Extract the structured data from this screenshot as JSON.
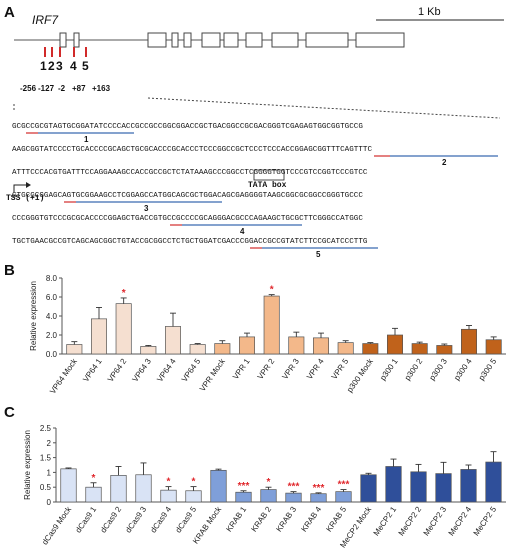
{
  "panels": {
    "a": "A",
    "b": "B",
    "c": "C"
  },
  "panel_a": {
    "gene": "IRF7",
    "scale_bar": "1 Kb",
    "sites": [
      "1",
      "2",
      "3",
      "4",
      "5"
    ],
    "positions": [
      "-256",
      "-127",
      "-2",
      "+87",
      "+163"
    ],
    "sequence": [
      "GCGCCGCGTAGTGCGGATATCCCCACCGCCGCCGGCGGACCGCTGACGGCCGCGACGGGTCGAGAGTGGCGGTGCCG",
      "AAGCGGTATCCCCTGCACCCCGCAGCTGCGCACCCGCACCCTCCCGGCCGCTCCCTCCCACCGGAGCGGTTTCAGTTTC",
      "ATTTCCCACGTGATTTCCAGGAAAGCCACCGCCGCTCTATAAAGCCCGGCCTCGGGGTGGTCCCGTCCGGTCCCGTCC",
      "GTGCGCGGAGCAGTGCGGAAGCCTCGGAGCCATGGCAGCGCTGGACAGCGAGGGGTAAGCGGCGCGGCCGGGTGCCC",
      "CCCGGGTGTCCCGCGCACCCCGGAGCTGACCGTGCCGCCCCGCAGGGACGCCCAGAAGCTGCGCTTCGGGCCATGGC",
      "TGCTGAACGCCGTCAGCAGCGGCTGTACCGCGGCCTCTGCTGGATCGACCCGGACCGCCGTATCTTCCGCATCCCTTG"
    ],
    "seq_labels": [
      "1",
      "2",
      "3",
      "4",
      "5"
    ],
    "tata_box": "TATA box",
    "tss": "TSS (+1)"
  },
  "chart_data": [
    {
      "type": "bar",
      "panel": "B",
      "ylabel": "Relative expression",
      "ylim": [
        0,
        8
      ],
      "yticks": [
        "0.0",
        "2.0",
        "4.0",
        "6.0",
        "8.0"
      ],
      "categories": [
        "VP64 Mock",
        "VP64 1",
        "VP64 2",
        "VP64 3",
        "VP64 4",
        "VP64 5",
        "VPR Mock",
        "VPR 1",
        "VPR 2",
        "VPR 3",
        "VPR 4",
        "VPR 5",
        "p300 Mock",
        "p300 1",
        "p300 2",
        "p300 3",
        "p300 4",
        "p300 5"
      ],
      "values": [
        1.0,
        3.7,
        5.3,
        0.8,
        2.9,
        1.0,
        1.1,
        1.8,
        6.1,
        1.8,
        1.7,
        1.2,
        1.1,
        2.0,
        1.1,
        0.9,
        2.6,
        1.5
      ],
      "errors": [
        0.3,
        1.2,
        0.6,
        0.1,
        1.4,
        0.1,
        0.3,
        0.4,
        0.15,
        0.5,
        0.5,
        0.2,
        0.1,
        0.7,
        0.15,
        0.15,
        0.4,
        0.3
      ],
      "significance": [
        "",
        "",
        "*",
        "",
        "",
        "",
        "",
        "",
        "*",
        "",
        "",
        "",
        "",
        "",
        "",
        "",
        "",
        ""
      ],
      "colors": [
        "#f5dfd0",
        "#f5dfd0",
        "#f5dfd0",
        "#f5dfd0",
        "#f5dfd0",
        "#f5dfd0",
        "#f3b88a",
        "#f3b88a",
        "#f3b88a",
        "#f3b88a",
        "#f3b88a",
        "#f3b88a",
        "#c0621b",
        "#c0621b",
        "#c0621b",
        "#c0621b",
        "#c0621b",
        "#c0621b"
      ]
    },
    {
      "type": "bar",
      "panel": "C",
      "ylabel": "Relative expression",
      "ylim": [
        0,
        2.5
      ],
      "yticks": [
        "0",
        "0.5",
        "1",
        "1.5",
        "2",
        "2.5"
      ],
      "categories": [
        "dCas9 Mock",
        "dCas9 1",
        "dCas9 2",
        "dCas9 3",
        "dCas9 4",
        "dCas9 5",
        "KRAB Mock",
        "KRAB 1",
        "KRAB 2",
        "KRAB 3",
        "KRAB 4",
        "KRAB 5",
        "MeCP2 Mock",
        "MeCP2 1",
        "MeCP2 2",
        "MeCP2 3",
        "MeCP2 4",
        "MeCP2 5"
      ],
      "values": [
        1.12,
        0.5,
        0.9,
        0.92,
        0.4,
        0.38,
        1.07,
        0.33,
        0.42,
        0.3,
        0.28,
        0.35,
        0.92,
        1.2,
        1.02,
        0.96,
        1.1,
        1.35
      ],
      "errors": [
        0.03,
        0.15,
        0.3,
        0.4,
        0.12,
        0.14,
        0.04,
        0.05,
        0.08,
        0.05,
        0.03,
        0.07,
        0.05,
        0.25,
        0.25,
        0.38,
        0.15,
        0.35
      ],
      "significance": [
        "",
        "*",
        "",
        "",
        "*",
        "*",
        "",
        "***",
        "*",
        "***",
        "***",
        "***",
        "",
        "",
        "",
        "",
        "",
        ""
      ],
      "colors": [
        "#d9e3f5",
        "#d9e3f5",
        "#d9e3f5",
        "#d9e3f5",
        "#d9e3f5",
        "#d9e3f5",
        "#7f9fd9",
        "#7f9fd9",
        "#7f9fd9",
        "#7f9fd9",
        "#7f9fd9",
        "#7f9fd9",
        "#2f4f9a",
        "#2f4f9a",
        "#2f4f9a",
        "#2f4f9a",
        "#2f4f9a",
        "#2f4f9a"
      ]
    }
  ],
  "colors": {
    "significance": "#e0262b",
    "site_tick": "#d12a2a",
    "underline_blue": "#3b6bb0",
    "underline_red": "#d12a2a"
  }
}
